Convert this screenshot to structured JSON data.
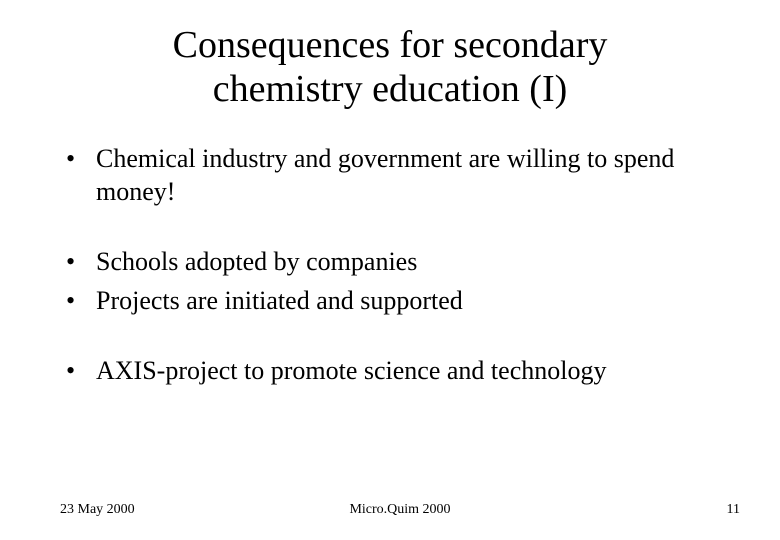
{
  "title_line1": "Consequences for secondary",
  "title_line2": "chemistry education (I)",
  "bullets": {
    "b0": "Chemical industry and government are willing to spend money!",
    "b1": "Schools adopted by companies",
    "b2": "Projects are initiated and supported",
    "b3": "AXIS-project to promote science and technology"
  },
  "footer": {
    "date": "23 May 2000",
    "center": "Micro.Quim 2000",
    "page": "11"
  },
  "styling": {
    "background_color": "#ffffff",
    "text_color": "#000000",
    "font_family": "Times New Roman",
    "title_fontsize": 38,
    "body_fontsize": 26,
    "footer_fontsize": 14,
    "slide_width": 780,
    "slide_height": 540
  }
}
